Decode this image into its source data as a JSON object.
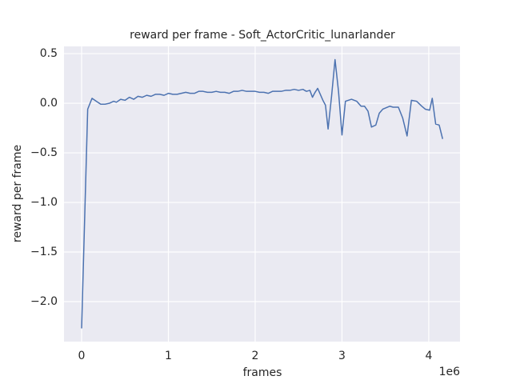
{
  "chart_data": {
    "type": "line",
    "title": "reward per frame - Soft_ActorCritic_lunarlander",
    "x_label": "frames",
    "y_label": "reward per frame",
    "x_offset_label": "1e6",
    "grid": true,
    "x": [
      0,
      70000,
      120000,
      170000,
      220000,
      270000,
      320000,
      370000,
      400000,
      450000,
      500000,
      550000,
      600000,
      650000,
      700000,
      750000,
      800000,
      850000,
      900000,
      950000,
      1000000,
      1050000,
      1100000,
      1150000,
      1200000,
      1250000,
      1300000,
      1350000,
      1400000,
      1450000,
      1500000,
      1550000,
      1600000,
      1650000,
      1700000,
      1750000,
      1800000,
      1850000,
      1900000,
      1950000,
      2000000,
      2050000,
      2100000,
      2150000,
      2200000,
      2250000,
      2300000,
      2350000,
      2400000,
      2450000,
      2500000,
      2550000,
      2590000,
      2630000,
      2660000,
      2690000,
      2720000,
      2780000,
      2810000,
      2840000,
      2880000,
      2920000,
      2960000,
      3000000,
      3040000,
      3110000,
      3170000,
      3220000,
      3260000,
      3300000,
      3340000,
      3390000,
      3430000,
      3470000,
      3550000,
      3590000,
      3650000,
      3700000,
      3750000,
      3800000,
      3860000,
      3920000,
      3960000,
      4010000,
      4040000,
      4080000,
      4120000,
      4160000
    ],
    "series": [
      {
        "color": "#4c72b0",
        "values": [
          -2.27,
          -0.06,
          0.05,
          0.02,
          -0.01,
          -0.01,
          0.0,
          0.02,
          0.01,
          0.04,
          0.03,
          0.06,
          0.04,
          0.07,
          0.06,
          0.08,
          0.07,
          0.09,
          0.09,
          0.08,
          0.1,
          0.09,
          0.09,
          0.1,
          0.11,
          0.1,
          0.1,
          0.12,
          0.12,
          0.11,
          0.11,
          0.12,
          0.11,
          0.11,
          0.1,
          0.12,
          0.12,
          0.13,
          0.12,
          0.12,
          0.12,
          0.11,
          0.11,
          0.1,
          0.12,
          0.12,
          0.12,
          0.13,
          0.13,
          0.14,
          0.13,
          0.14,
          0.12,
          0.13,
          0.06,
          0.11,
          0.15,
          0.03,
          -0.02,
          -0.26,
          0.07,
          0.44,
          0.12,
          -0.32,
          0.02,
          0.04,
          0.02,
          -0.03,
          -0.03,
          -0.08,
          -0.24,
          -0.22,
          -0.1,
          -0.06,
          -0.03,
          -0.04,
          -0.04,
          -0.15,
          -0.33,
          0.03,
          0.02,
          -0.03,
          -0.06,
          -0.07,
          0.05,
          -0.21,
          -0.22,
          -0.36
        ]
      }
    ],
    "xlim": [
      -203000,
      4360000
    ],
    "ylim": [
      -2.403,
      0.573
    ],
    "xticks": [
      0,
      {
        "value": 1000000,
        "label": "1"
      },
      {
        "value": 2000000,
        "label": "2"
      },
      {
        "value": 3000000,
        "label": "3"
      },
      {
        "value": 4000000,
        "label": "4"
      }
    ],
    "yticks": [
      {
        "value": -2.0,
        "label": "−2.0"
      },
      {
        "value": -1.5,
        "label": "−1.5"
      },
      {
        "value": -1.0,
        "label": "−1.0"
      },
      {
        "value": -0.5,
        "label": "−0.5"
      },
      {
        "value": 0.0,
        "label": "0.0"
      },
      {
        "value": 0.5,
        "label": "0.5"
      }
    ]
  }
}
